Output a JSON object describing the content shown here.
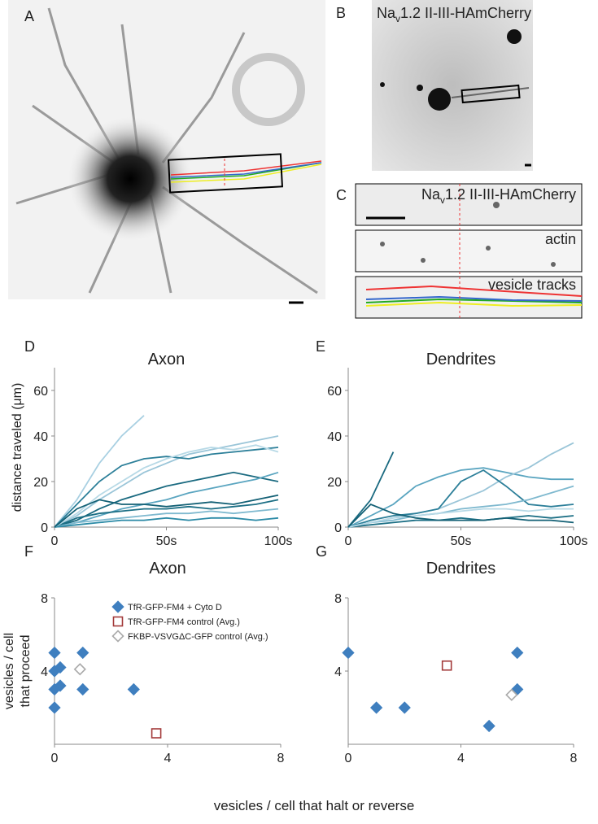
{
  "panel_labels": [
    "A",
    "B",
    "C",
    "D",
    "E",
    "F",
    "G"
  ],
  "image_labels": {
    "B": [
      "Na",
      "v",
      "1.2 II-III-HAmCherry"
    ],
    "C1": [
      "Na",
      "v",
      "1.2 II-III-HAmCherry"
    ],
    "C2": "actin",
    "C3": "vesicle tracks"
  },
  "shared_x_label": "vesicles / cell that halt or reverse",
  "chart_data": [
    {
      "type": "line",
      "title": "Axon",
      "ylabel": [
        "distance traveled (μm)"
      ],
      "x": [
        0,
        10,
        20,
        30,
        40,
        50,
        60,
        70,
        80,
        90,
        100
      ],
      "xlim": [
        0,
        100
      ],
      "xticks": [
        0,
        {
          "value": 50,
          "label": "50s"
        },
        {
          "value": 100,
          "label": "100s"
        }
      ],
      "ylim": [
        0,
        70
      ],
      "yticks": [
        0,
        20,
        40,
        60
      ],
      "series": [
        {
          "color": "#a9d0e2",
          "values": [
            0,
            12,
            28,
            40,
            49,
            null,
            null,
            null,
            null,
            null,
            null
          ]
        },
        {
          "color": "#9ac5d8",
          "values": [
            0,
            5,
            12,
            18,
            24,
            28,
            32,
            34,
            36,
            38,
            40
          ]
        },
        {
          "color": "#2c7f99",
          "values": [
            0,
            10,
            20,
            27,
            30,
            31,
            30,
            32,
            33,
            34,
            35
          ]
        },
        {
          "color": "#1a6a80",
          "values": [
            0,
            3,
            8,
            12,
            15,
            18,
            20,
            22,
            24,
            22,
            20
          ]
        },
        {
          "color": "#5aa5c0",
          "values": [
            0,
            2,
            5,
            8,
            10,
            12,
            15,
            17,
            19,
            21,
            24
          ]
        },
        {
          "color": "#1c6f85",
          "values": [
            0,
            4,
            6,
            7,
            8,
            8,
            9,
            8,
            9,
            10,
            12
          ]
        },
        {
          "color": "#7fb9cf",
          "values": [
            0,
            2,
            3,
            4,
            5,
            6,
            6,
            7,
            6,
            7,
            8
          ]
        },
        {
          "color": "#2b8aa6",
          "values": [
            0,
            1,
            2,
            3,
            3,
            4,
            3,
            4,
            4,
            3,
            4
          ]
        },
        {
          "color": "#b7d9e6",
          "values": [
            0,
            6,
            14,
            20,
            26,
            30,
            33,
            35,
            34,
            36,
            33
          ]
        },
        {
          "color": "#136075",
          "values": [
            0,
            8,
            12,
            10,
            10,
            9,
            10,
            11,
            10,
            12,
            14
          ]
        }
      ]
    },
    {
      "type": "line",
      "title": "Dendrites",
      "x": [
        0,
        10,
        20,
        30,
        40,
        50,
        60,
        70,
        80,
        90,
        100
      ],
      "xlim": [
        0,
        100
      ],
      "xticks": [
        0,
        {
          "value": 50,
          "label": "50s"
        },
        {
          "value": 100,
          "label": "100s"
        }
      ],
      "ylim": [
        0,
        70
      ],
      "yticks": [
        0,
        20,
        40,
        60
      ],
      "series": [
        {
          "color": "#1a6a80",
          "values": [
            0,
            12,
            33,
            null,
            null,
            null,
            null,
            null,
            null,
            null,
            null
          ]
        },
        {
          "color": "#5aa5c0",
          "values": [
            0,
            5,
            10,
            18,
            22,
            25,
            26,
            24,
            22,
            21,
            21
          ]
        },
        {
          "color": "#9ac5d8",
          "values": [
            0,
            2,
            4,
            6,
            8,
            12,
            16,
            22,
            26,
            32,
            37
          ]
        },
        {
          "color": "#2c7f99",
          "values": [
            0,
            3,
            5,
            6,
            8,
            20,
            25,
            18,
            10,
            9,
            10
          ]
        },
        {
          "color": "#7fb9cf",
          "values": [
            0,
            2,
            3,
            5,
            6,
            8,
            9,
            10,
            12,
            15,
            18
          ]
        },
        {
          "color": "#1c6f85",
          "values": [
            0,
            1,
            2,
            3,
            3,
            4,
            3,
            4,
            5,
            4,
            5
          ]
        },
        {
          "color": "#b7d9e6",
          "values": [
            0,
            2,
            4,
            5,
            6,
            7,
            8,
            8,
            7,
            8,
            8
          ]
        },
        {
          "color": "#136075",
          "values": [
            0,
            10,
            6,
            4,
            3,
            3,
            3,
            4,
            3,
            3,
            2
          ]
        }
      ]
    },
    {
      "type": "scatter",
      "title": "Axon",
      "ylabel": [
        "vesicles / cell",
        "that proceed"
      ],
      "legend": true,
      "xlim": [
        0,
        8
      ],
      "xticks": [
        0,
        4,
        8
      ],
      "ylim": [
        0,
        8
      ],
      "yticks": [
        4,
        8
      ],
      "series": [
        {
          "name": "TfR-GFP-FM4 + Cyto D",
          "color": "#3f7fbf",
          "marker": "diamond",
          "filled": true,
          "x": [
            0,
            0,
            0,
            0,
            0.2,
            0.2,
            1,
            1,
            2.8
          ],
          "values": [
            5,
            4,
            3,
            2,
            4.2,
            3.2,
            5,
            3,
            3
          ]
        },
        {
          "name": "TfR-GFP-FM4 control (Avg.)",
          "color": "#a33a3a",
          "marker": "square",
          "filled": false,
          "x": [
            3.6
          ],
          "values": [
            0.6
          ]
        },
        {
          "name": "FKBP-VSVGΔC-GFP control (Avg.)",
          "color": "#aaaaaa",
          "marker": "diamond",
          "filled": false,
          "x": [
            0.9
          ],
          "values": [
            4.1
          ]
        }
      ]
    },
    {
      "type": "scatter",
      "title": "Dendrites",
      "xlim": [
        0,
        8
      ],
      "xticks": [
        0,
        4,
        8
      ],
      "ylim": [
        0,
        8
      ],
      "yticks": [
        4,
        8
      ],
      "series": [
        {
          "color": "#3f7fbf",
          "marker": "diamond",
          "filled": true,
          "x": [
            0,
            1,
            2,
            5,
            6,
            6
          ],
          "values": [
            5,
            2,
            2,
            1,
            5,
            3
          ]
        },
        {
          "color": "#a33a3a",
          "marker": "square",
          "filled": false,
          "x": [
            3.5
          ],
          "values": [
            4.3
          ]
        },
        {
          "color": "#aaaaaa",
          "marker": "diamond",
          "filled": false,
          "x": [
            5.8
          ],
          "values": [
            2.7
          ]
        }
      ]
    }
  ]
}
